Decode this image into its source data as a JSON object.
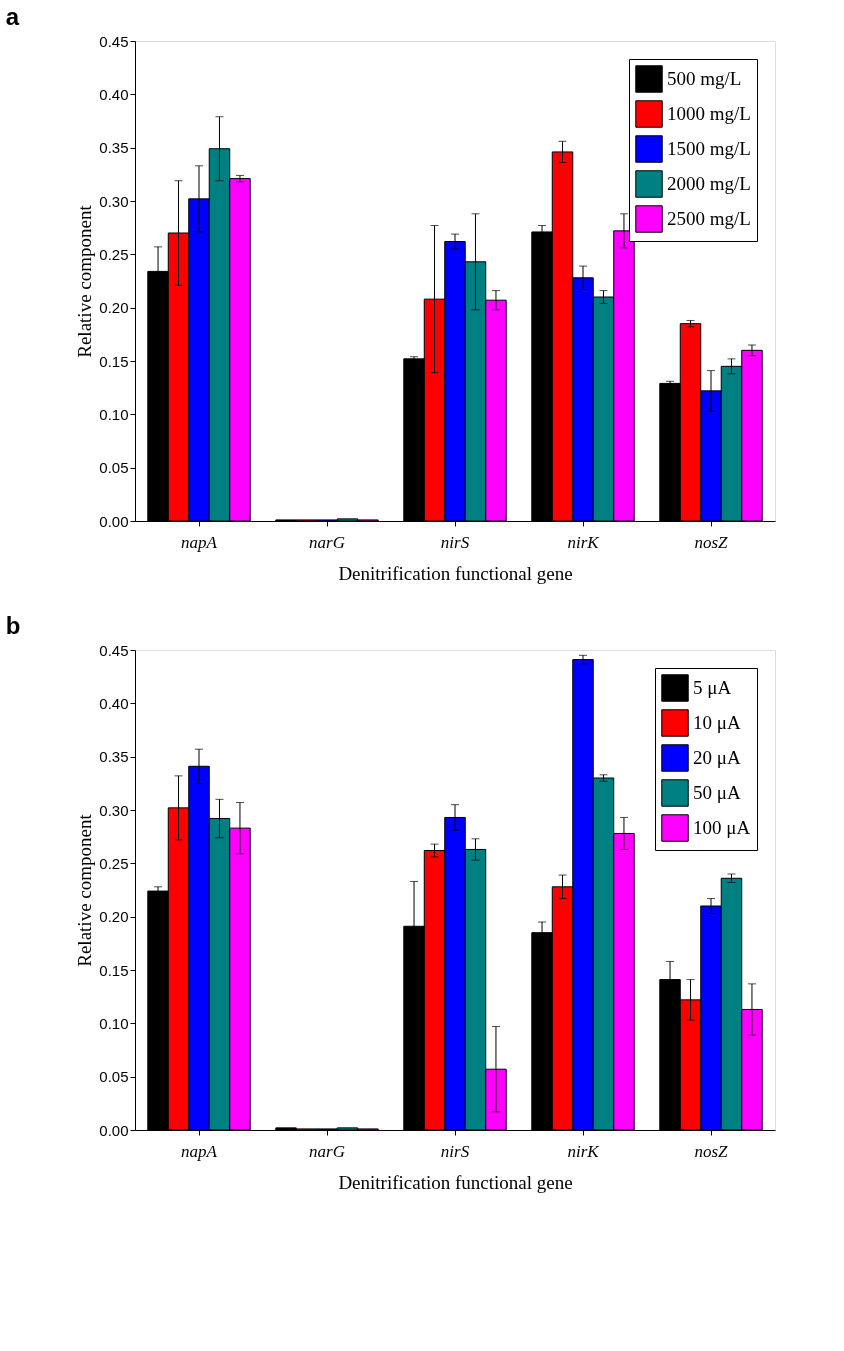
{
  "chart_data": [
    {
      "type": "bar",
      "title": "a",
      "xlabel": "Denitrification functional gene",
      "ylabel": "Relative component",
      "categories": [
        "napA",
        "narG",
        "nirS",
        "nirK",
        "nosZ"
      ],
      "ylim": [
        0,
        0.45
      ],
      "yticks": [
        {
          "value": 0,
          "label": "0.00"
        },
        0.05,
        {
          "value": 0.1,
          "label": "0.10"
        },
        0.15,
        {
          "value": 0.2,
          "label": "0.20"
        },
        0.25,
        {
          "value": 0.3,
          "label": "0.30"
        },
        0.35,
        {
          "value": 0.4,
          "label": "0.40"
        },
        0.45
      ],
      "grid": false,
      "legend": "top right",
      "series": [
        {
          "name": "500 mg/L",
          "color": "#000000",
          "values": [
            0.234,
            0.001,
            0.152,
            0.271,
            0.129
          ],
          "errors": [
            0.023,
            null,
            0.002,
            0.006,
            0.002
          ]
        },
        {
          "name": "1000 mg/L",
          "color": "#ff0000",
          "values": [
            0.27,
            0.001,
            0.208,
            0.346,
            0.185
          ],
          "errors": [
            0.049,
            null,
            0.069,
            0.01,
            0.003
          ]
        },
        {
          "name": "1500 mg/L",
          "color": "#0000ff",
          "values": [
            0.302,
            0.001,
            0.262,
            0.228,
            0.122
          ],
          "errors": [
            0.031,
            null,
            0.007,
            0.011,
            0.019
          ]
        },
        {
          "name": "2000 mg/L",
          "color": "#008080",
          "values": [
            0.349,
            0.002,
            0.243,
            0.21,
            0.145
          ],
          "errors": [
            0.03,
            null,
            0.045,
            0.006,
            0.007
          ]
        },
        {
          "name": "2500 mg/L",
          "color": "#ff00ff",
          "values": [
            0.321,
            0.001,
            0.207,
            0.272,
            0.16
          ],
          "errors": [
            0.003,
            null,
            0.009,
            0.016,
            0.005
          ]
        }
      ]
    },
    {
      "type": "bar",
      "title": "b",
      "xlabel": "Denitrification functional gene",
      "ylabel": "Relative component",
      "categories": [
        "napA",
        "narG",
        "nirS",
        "nirK",
        "nosZ"
      ],
      "ylim": [
        0,
        0.45
      ],
      "yticks": [
        {
          "value": 0,
          "label": "0.00"
        },
        0.05,
        {
          "value": 0.1,
          "label": "0.10"
        },
        0.15,
        {
          "value": 0.2,
          "label": "0.20"
        },
        0.25,
        {
          "value": 0.3,
          "label": "0.30"
        },
        0.35,
        {
          "value": 0.4,
          "label": "0.40"
        },
        0.45
      ],
      "grid": false,
      "legend": "top right",
      "series": [
        {
          "name": "5 μA",
          "color": "#000000",
          "values": [
            0.224,
            0.002,
            0.191,
            0.185,
            0.141
          ],
          "errors": [
            0.004,
            null,
            0.042,
            0.01,
            0.017
          ]
        },
        {
          "name": "10 μA",
          "color": "#ff0000",
          "values": [
            0.302,
            0.001,
            0.262,
            0.228,
            0.122
          ],
          "errors": [
            0.03,
            null,
            0.006,
            0.011,
            0.019
          ]
        },
        {
          "name": "20 μA",
          "color": "#0000ff",
          "values": [
            0.341,
            0.001,
            0.293,
            0.441,
            0.21
          ],
          "errors": [
            0.016,
            null,
            0.012,
            0.004,
            0.007
          ]
        },
        {
          "name": "50 μA",
          "color": "#008080",
          "values": [
            0.292,
            0.002,
            0.263,
            0.33,
            0.236
          ],
          "errors": [
            0.018,
            null,
            0.01,
            0.003,
            0.004
          ]
        },
        {
          "name": "100 μA",
          "color": "#ff00ff",
          "values": [
            0.283,
            0.001,
            0.057,
            0.278,
            0.113
          ],
          "errors": [
            0.024,
            null,
            0.04,
            0.015,
            0.024
          ]
        }
      ]
    }
  ]
}
